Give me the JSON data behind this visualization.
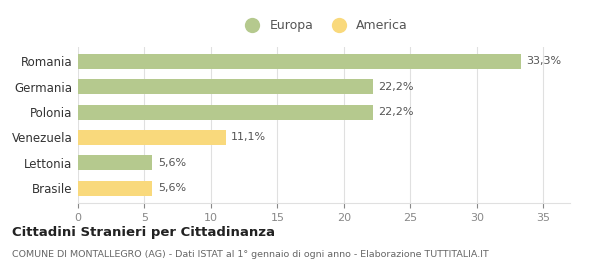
{
  "categories": [
    "Brasile",
    "Lettonia",
    "Venezuela",
    "Polonia",
    "Germania",
    "Romania"
  ],
  "values": [
    5.6,
    5.6,
    11.1,
    22.2,
    22.2,
    33.3
  ],
  "labels": [
    "5,6%",
    "5,6%",
    "11,1%",
    "22,2%",
    "22,2%",
    "33,3%"
  ],
  "colors": [
    "#f9d97c",
    "#b5c98e",
    "#f9d97c",
    "#b5c98e",
    "#b5c98e",
    "#b5c98e"
  ],
  "europa_color": "#b5c98e",
  "america_color": "#f9d97c",
  "xlim": [
    0,
    37
  ],
  "xticks": [
    0,
    5,
    10,
    15,
    20,
    25,
    30,
    35
  ],
  "title": "Cittadini Stranieri per Cittadinanza",
  "subtitle": "COMUNE DI MONTALLEGRO (AG) - Dati ISTAT al 1° gennaio di ogni anno - Elaborazione TUTTITALIA.IT",
  "legend_europa": "Europa",
  "legend_america": "America",
  "background_color": "#ffffff",
  "grid_color": "#e0e0e0",
  "bar_height": 0.6
}
